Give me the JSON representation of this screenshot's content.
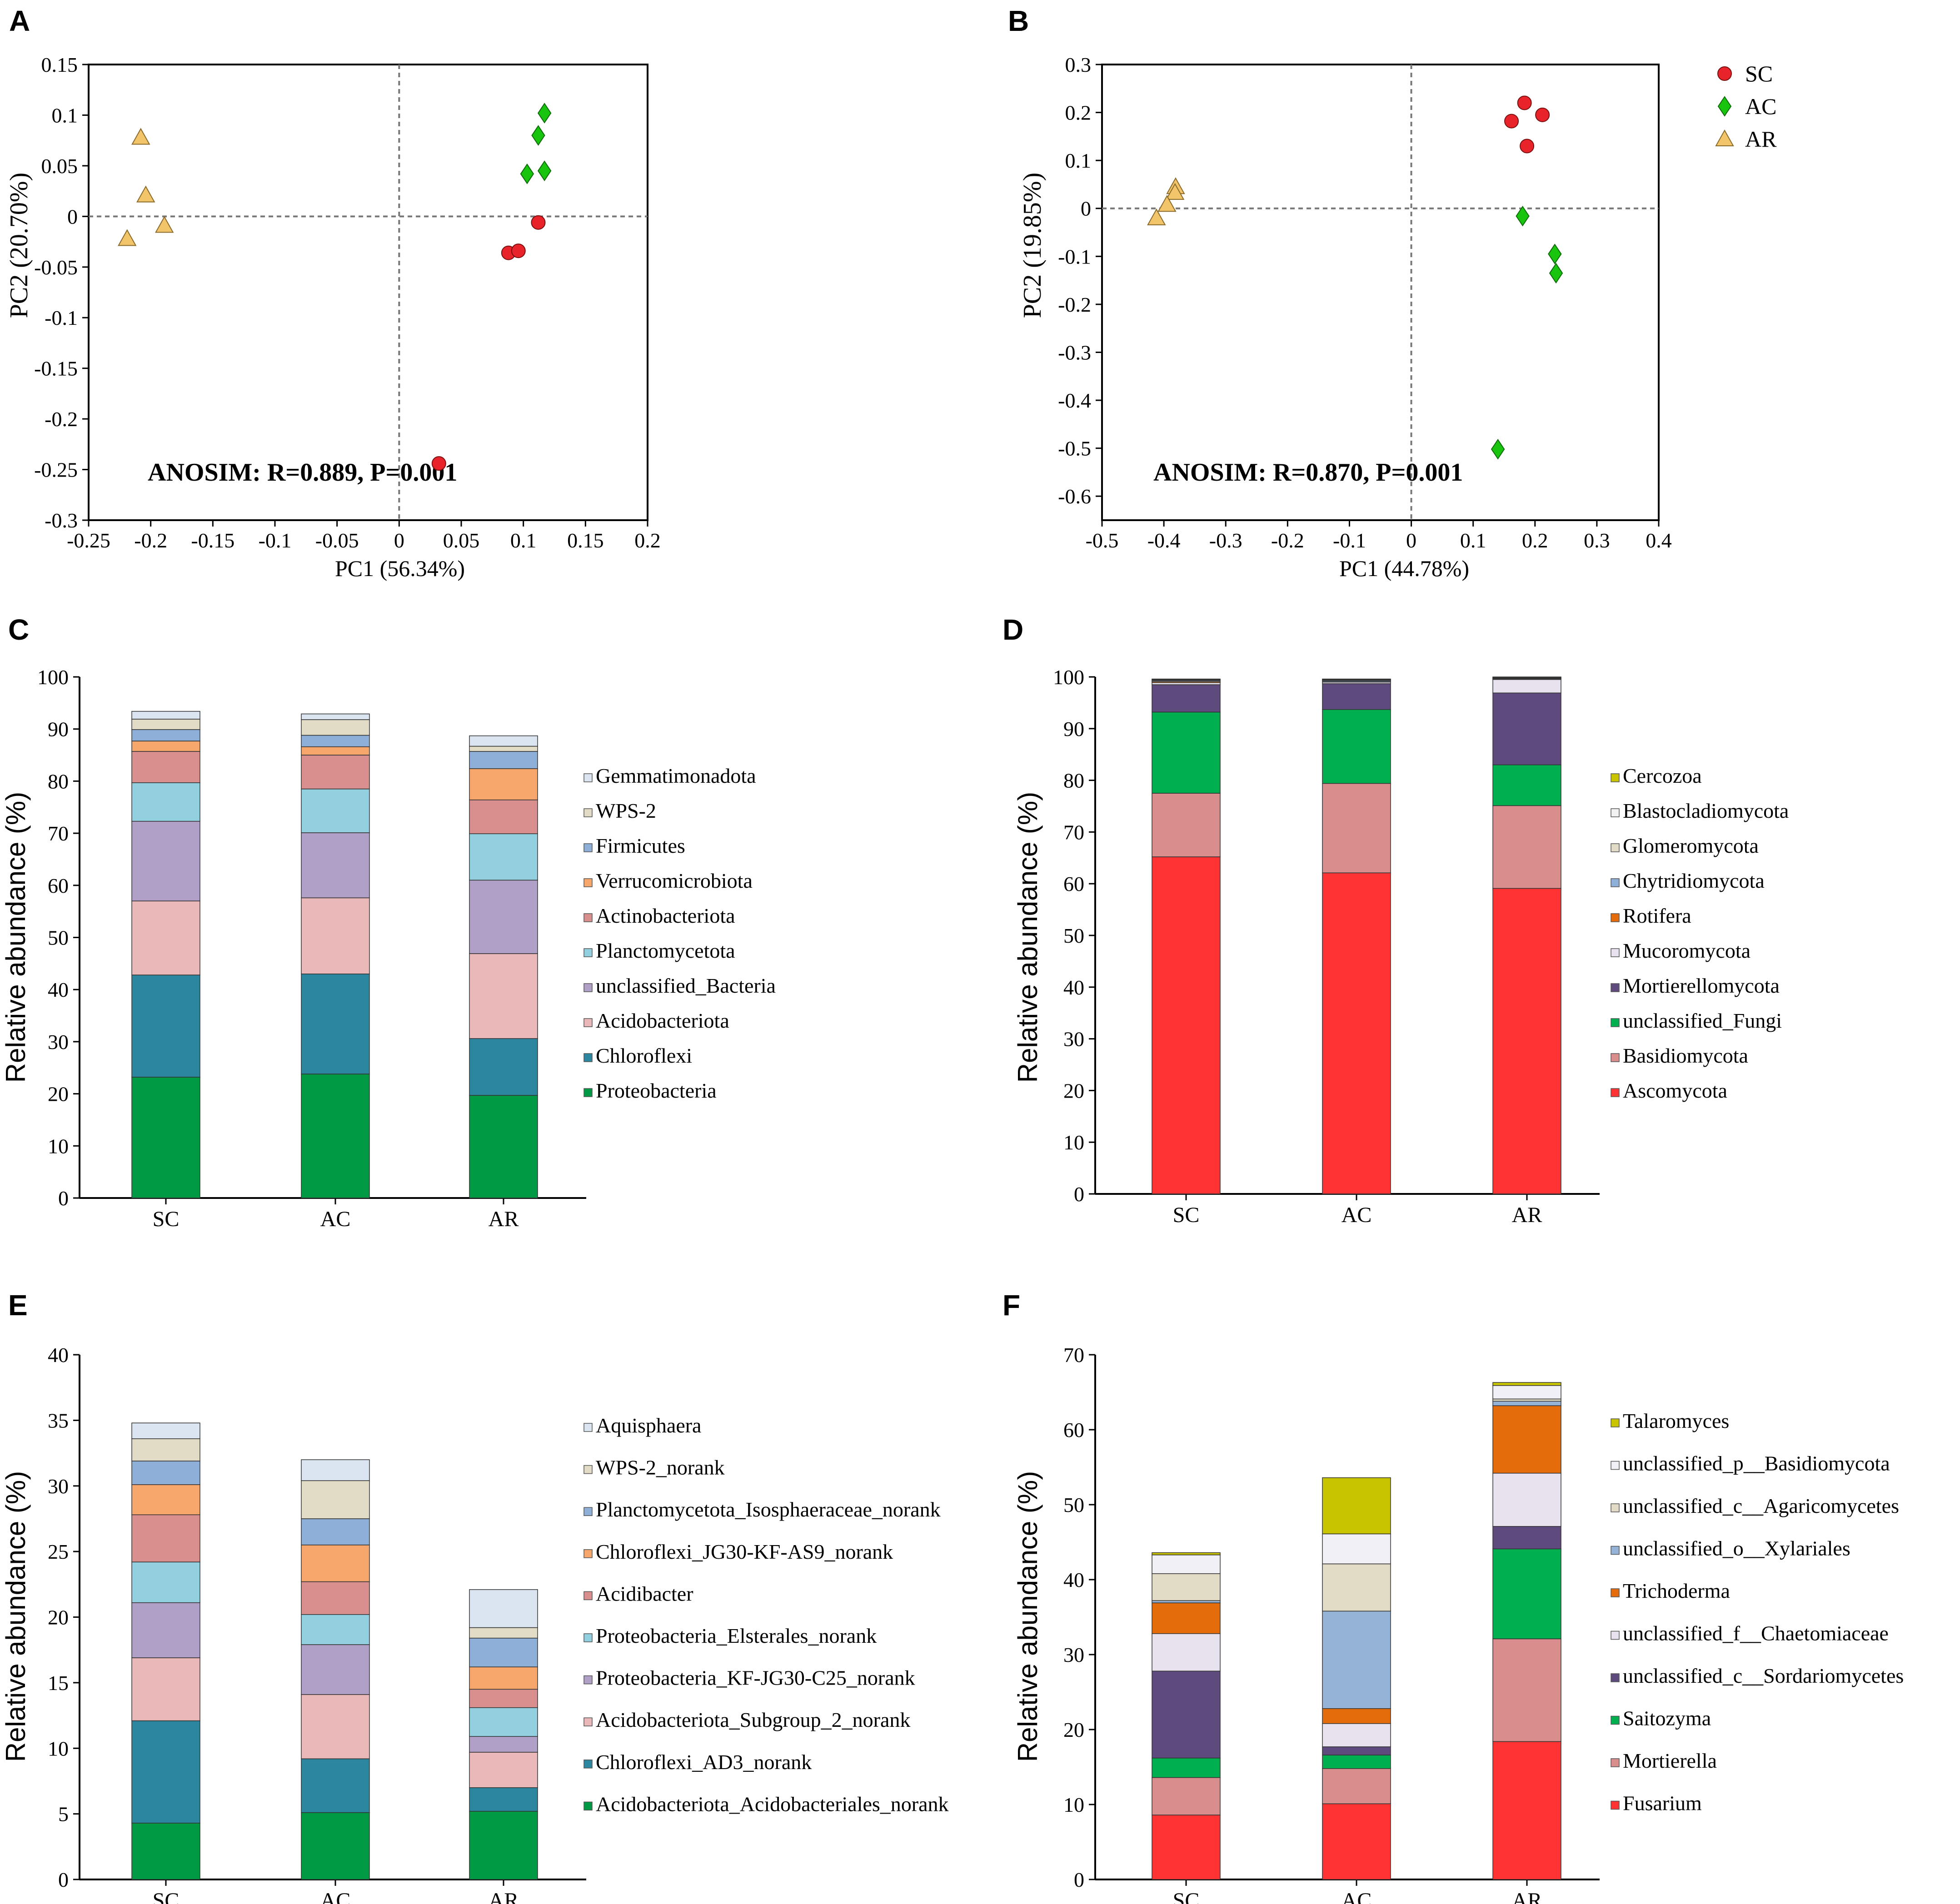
{
  "chart_data": [
    {
      "panel": "A",
      "type": "scatter",
      "title": "",
      "xlabel": "PC1  (56.34%)",
      "ylabel": "PC2  (20.70%)",
      "xlim": [
        -0.25,
        0.2
      ],
      "ylim": [
        -0.3,
        0.15
      ],
      "xticks": [
        "-0.25",
        "-0.2",
        "-0.15",
        "-0.1",
        "-0.05",
        "0",
        "0.05",
        "0.1",
        "0.15",
        "0.2"
      ],
      "yticks": [
        "0.15",
        "0.1",
        "0.05",
        "0",
        "-0.05",
        "-0.1",
        "-0.15",
        "-0.2",
        "-0.25",
        "-0.3"
      ],
      "annotation": "ANOSIM: R=0.889, P=0.001",
      "series": [
        {
          "name": "SC",
          "marker": "circle",
          "color": "#e8242a",
          "points": [
            [
              0.088,
              -0.036
            ],
            [
              0.096,
              -0.034
            ],
            [
              0.112,
              -0.006
            ],
            [
              0.032,
              -0.244
            ]
          ]
        },
        {
          "name": "AC",
          "marker": "diamond",
          "color": "#19c40f",
          "points": [
            [
              0.117,
              0.102
            ],
            [
              0.112,
              0.08
            ],
            [
              0.103,
              0.042
            ],
            [
              0.117,
              0.045
            ]
          ]
        },
        {
          "name": "AR",
          "marker": "triangle",
          "color": "#f2c56b",
          "points": [
            [
              -0.208,
              0.078
            ],
            [
              -0.204,
              0.021
            ],
            [
              -0.189,
              -0.009
            ],
            [
              -0.219,
              -0.022
            ]
          ]
        }
      ]
    },
    {
      "panel": "B",
      "type": "scatter",
      "title": "",
      "xlabel": "PC1  (44.78%)",
      "ylabel": "PC2  (19.85%)",
      "xlim": [
        -0.5,
        0.4
      ],
      "ylim": [
        -0.65,
        0.3
      ],
      "xticks": [
        "-0.5",
        "-0.4",
        "-0.3",
        "-0.2",
        "-0.1",
        "0",
        "0.1",
        "0.2",
        "0.3",
        "0.4"
      ],
      "yticks": [
        "0.3",
        "0.2",
        "0.1",
        "0",
        "-0.1",
        "-0.2",
        "-0.3",
        "-0.4",
        "-0.5",
        "-0.6"
      ],
      "annotation": "ANOSIM: R=0.870, P=0.001",
      "legend_position": "top-right",
      "series": [
        {
          "name": "SC",
          "marker": "circle",
          "color": "#e8242a",
          "points": [
            [
              0.183,
              0.22
            ],
            [
              0.212,
              0.195
            ],
            [
              0.162,
              0.182
            ],
            [
              0.187,
              0.13
            ]
          ]
        },
        {
          "name": "AC",
          "marker": "diamond",
          "color": "#19c40f",
          "points": [
            [
              0.18,
              -0.016
            ],
            [
              0.232,
              -0.095
            ],
            [
              0.234,
              -0.135
            ],
            [
              0.14,
              -0.502
            ]
          ]
        },
        {
          "name": "AR",
          "marker": "triangle",
          "color": "#f2c56b",
          "points": [
            [
              -0.381,
              0.045
            ],
            [
              -0.382,
              0.033
            ],
            [
              -0.395,
              0.008
            ],
            [
              -0.412,
              -0.02
            ]
          ]
        }
      ]
    },
    {
      "panel": "C",
      "type": "bar",
      "stacked": true,
      "title": "",
      "xlabel": "",
      "ylabel": "Relative abundance (%)",
      "ylim": [
        0,
        100
      ],
      "yticks": [
        "0",
        "10",
        "20",
        "30",
        "40",
        "50",
        "60",
        "70",
        "80",
        "90",
        "100"
      ],
      "categories": [
        "SC",
        "AC",
        "AR"
      ],
      "series": [
        {
          "name": "Proteobacteria",
          "color": "#009a44",
          "values": [
            23.2,
            23.8,
            19.7
          ]
        },
        {
          "name": "Chloroflexi",
          "color": "#2d86a0",
          "values": [
            19.6,
            19.2,
            10.9
          ]
        },
        {
          "name": "Acidobacteriota",
          "color": "#eab8b8",
          "values": [
            14.2,
            14.6,
            16.3
          ]
        },
        {
          "name": "unclassified_Bacteria",
          "color": "#b09fc7",
          "values": [
            15.3,
            12.5,
            14.1
          ]
        },
        {
          "name": "Planctomycetota",
          "color": "#92cfdf",
          "values": [
            7.4,
            8.4,
            8.9
          ]
        },
        {
          "name": "Actinobacteriota",
          "color": "#d88f8e",
          "values": [
            6.0,
            6.5,
            6.5
          ]
        },
        {
          "name": "Verrucomicrobiota",
          "color": "#f7a76b",
          "values": [
            2.0,
            1.6,
            6.0
          ]
        },
        {
          "name": "Firmicutes",
          "color": "#8eb0d8",
          "values": [
            2.2,
            2.2,
            3.3
          ]
        },
        {
          "name": "WPS-2",
          "color": "#e2dcc7",
          "values": [
            2.0,
            3.0,
            1.0
          ]
        },
        {
          "name": "Gemmatimonadota",
          "color": "#dbe5f1",
          "values": [
            1.5,
            1.1,
            2.0
          ]
        }
      ]
    },
    {
      "panel": "D",
      "type": "bar",
      "stacked": true,
      "title": "",
      "xlabel": "",
      "ylabel": "Relative abundance (%)",
      "ylim": [
        0,
        100
      ],
      "yticks": [
        "0",
        "10",
        "20",
        "30",
        "40",
        "50",
        "60",
        "70",
        "80",
        "90",
        "100"
      ],
      "categories": [
        "SC",
        "AC",
        "AR"
      ],
      "series": [
        {
          "name": "Ascomycota",
          "color": "#ff3333",
          "values": [
            65.2,
            62.1,
            59.1
          ]
        },
        {
          "name": "Basidiomycota",
          "color": "#d98d8d",
          "values": [
            12.3,
            17.3,
            16.0
          ]
        },
        {
          "name": "unclassified_Fungi",
          "color": "#00b050",
          "values": [
            15.7,
            14.3,
            7.9
          ]
        },
        {
          "name": "Mortierellomycota",
          "color": "#5f4a7e",
          "values": [
            5.3,
            5.0,
            13.9
          ]
        },
        {
          "name": "Mucoromycota",
          "color": "#e8e2ee",
          "values": [
            0.4,
            0.3,
            2.6
          ]
        },
        {
          "name": "Rotifera",
          "color": "#e46c0a",
          "values": [
            0.2,
            0.1,
            0.1
          ]
        },
        {
          "name": "Chytridiomycota",
          "color": "#8eb0d8",
          "values": [
            0.2,
            0.2,
            0.1
          ]
        },
        {
          "name": "Glomeromycota",
          "color": "#e2dcc7",
          "values": [
            0.1,
            0.1,
            0.1
          ]
        },
        {
          "name": "Blastocladiomycota",
          "color": "#f2f2f2",
          "values": [
            0.1,
            0.1,
            0.1
          ]
        },
        {
          "name": "Cercozoa",
          "color": "#c9c400",
          "values": [
            0.1,
            0.1,
            0.1
          ]
        }
      ]
    },
    {
      "panel": "E",
      "type": "bar",
      "stacked": true,
      "title": "",
      "xlabel": "",
      "ylabel": "Relative abundance (%)",
      "ylim": [
        0,
        40
      ],
      "yticks": [
        "0",
        "5",
        "10",
        "15",
        "20",
        "25",
        "30",
        "35",
        "40"
      ],
      "categories": [
        "SC",
        "AC",
        "AR"
      ],
      "series": [
        {
          "name": "Acidobacteriota_Acidobacteriales_norank",
          "color": "#009a44",
          "values": [
            4.3,
            5.1,
            5.2
          ]
        },
        {
          "name": "Chloroflexi_AD3_norank",
          "color": "#2d86a0",
          "values": [
            7.8,
            4.1,
            1.8
          ]
        },
        {
          "name": "Acidobacteriota_Subgroup_2_norank",
          "color": "#eab8b8",
          "values": [
            4.8,
            4.9,
            2.7
          ]
        },
        {
          "name": "Proteobacteria_KF-JG30-C25_norank",
          "color": "#b09fc7",
          "values": [
            4.2,
            3.8,
            1.2
          ]
        },
        {
          "name": "Proteobacteria_Elsterales_norank",
          "color": "#92cfdf",
          "values": [
            3.1,
            2.3,
            2.2
          ]
        },
        {
          "name": "Acidibacter",
          "color": "#d88f8e",
          "values": [
            3.6,
            2.5,
            1.4
          ]
        },
        {
          "name": "Chloroflexi_JG30-KF-AS9_norank",
          "color": "#f7a76b",
          "values": [
            2.3,
            2.8,
            1.7
          ]
        },
        {
          "name": "Planctomycetota_Isosphaeraceae_norank",
          "color": "#8eb0d8",
          "values": [
            1.8,
            2.0,
            2.2
          ]
        },
        {
          "name": "WPS-2_norank",
          "color": "#e2dcc7",
          "values": [
            1.7,
            2.9,
            0.8
          ]
        },
        {
          "name": "Aquisphaera",
          "color": "#dbe5f1",
          "values": [
            1.2,
            1.6,
            2.9
          ]
        }
      ]
    },
    {
      "panel": "F",
      "type": "bar",
      "stacked": true,
      "title": "",
      "xlabel": "",
      "ylabel": "Relative abundance (%)",
      "ylim": [
        0,
        70
      ],
      "yticks": [
        "0",
        "10",
        "20",
        "30",
        "40",
        "50",
        "60",
        "70"
      ],
      "categories": [
        "SC",
        "AC",
        "AR"
      ],
      "series": [
        {
          "name": "Fusarium",
          "color": "#ff3333",
          "values": [
            8.6,
            10.1,
            18.4
          ]
        },
        {
          "name": "Mortierella",
          "color": "#d98d8d",
          "values": [
            5.0,
            4.7,
            13.7
          ]
        },
        {
          "name": "Saitozyma",
          "color": "#00b050",
          "values": [
            2.6,
            1.8,
            12.0
          ]
        },
        {
          "name": "unclassified_c__Sordariomycetes",
          "color": "#5f4a7e",
          "values": [
            11.6,
            1.1,
            3.0
          ]
        },
        {
          "name": "unclassified_f__Chaetomiaceae",
          "color": "#e8e2ee",
          "values": [
            5.0,
            3.1,
            7.1
          ]
        },
        {
          "name": "Trichoderma",
          "color": "#e46c0a",
          "values": [
            4.1,
            2.0,
            9.0
          ]
        },
        {
          "name": "unclassified_o__Xylariales",
          "color": "#95b3d7",
          "values": [
            0.3,
            13.0,
            0.6
          ]
        },
        {
          "name": "unclassified_c__Agaricomycetes",
          "color": "#e2dcc7",
          "values": [
            3.6,
            6.3,
            0.3
          ]
        },
        {
          "name": "unclassified_p__Basidiomycota",
          "color": "#f2f0f7",
          "values": [
            2.5,
            4.0,
            1.8
          ]
        },
        {
          "name": "Talaromyces",
          "color": "#c9c400",
          "values": [
            0.3,
            7.5,
            0.4
          ]
        }
      ]
    }
  ]
}
